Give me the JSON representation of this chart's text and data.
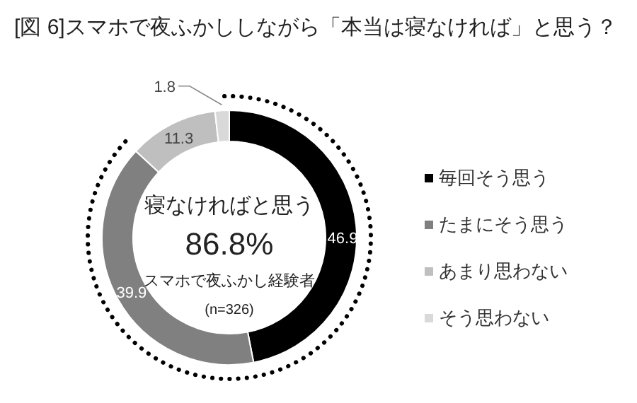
{
  "chart_data": {
    "type": "donut",
    "title": "[図 6]スマホで夜ふかししながら「本当は寝なければ」と思う？",
    "categories": [
      "毎回そう思う",
      "たまにそう思う",
      "あまり思わない",
      "そう思わない"
    ],
    "values": [
      46.9,
      39.9,
      11.3,
      1.8
    ],
    "colors": [
      "#000000",
      "#808080",
      "#bfbfbf",
      "#d9d9d9"
    ],
    "data_labels": true,
    "legend": "right",
    "annotations": [
      "寝なければと思う",
      "86.8%",
      "スマホで夜ふかし経験者",
      "(n=326)"
    ]
  }
}
